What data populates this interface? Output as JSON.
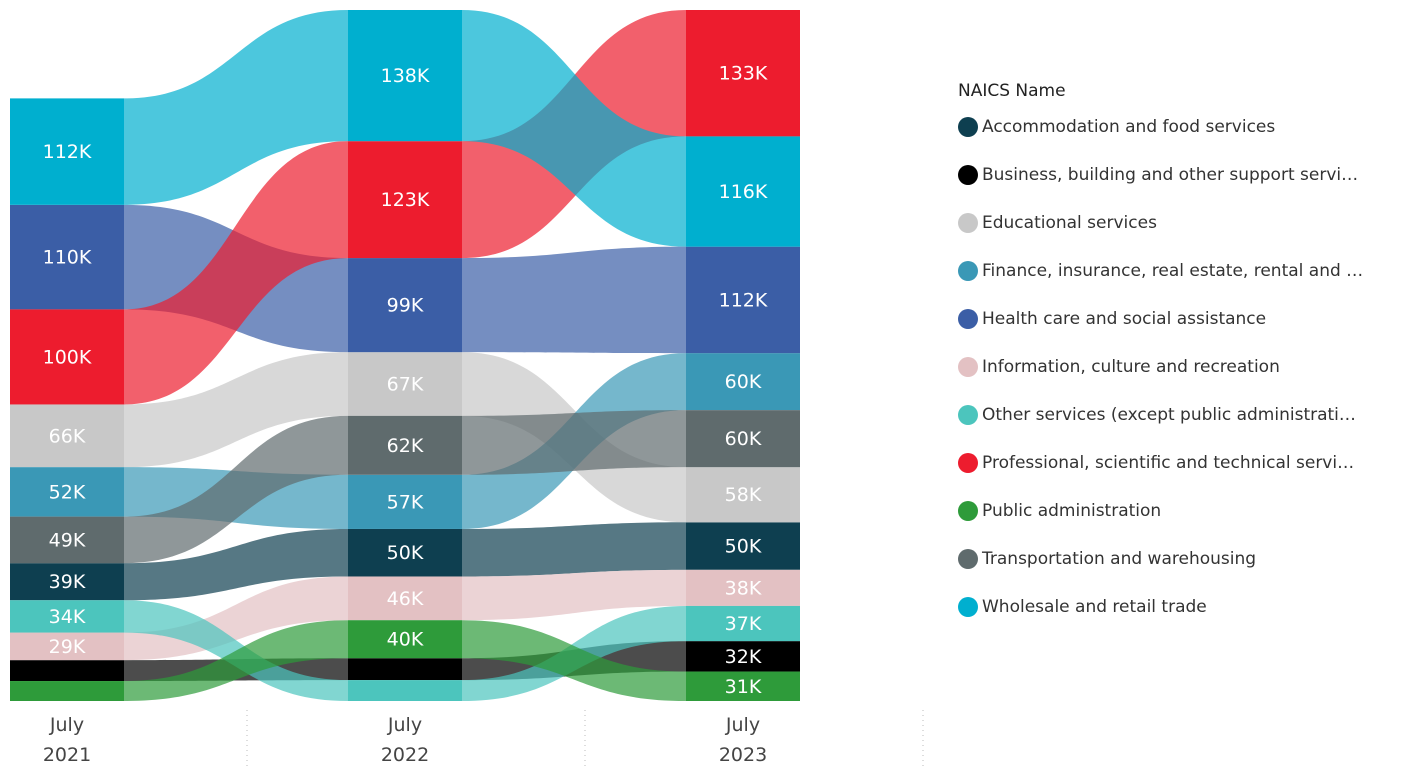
{
  "chart_data": {
    "type": "ribbon",
    "legend_title": "NAICS Name",
    "categories": [
      "July 2021",
      "July 2022",
      "July 2023"
    ],
    "series": [
      {
        "name": "Accommodation and food services",
        "color": "#0e3f50",
        "values": [
          39000,
          50000,
          50000
        ],
        "value_labels": [
          "39K",
          "50K",
          "50K"
        ]
      },
      {
        "name": "Business, building and other support servi…",
        "color": "#000000",
        "values": [
          22000,
          23000,
          32000
        ],
        "value_labels": [
          null,
          null,
          "32K"
        ]
      },
      {
        "name": "Educational services",
        "color": "#c8c8c8",
        "values": [
          66000,
          67000,
          58000
        ],
        "value_labels": [
          "66K",
          "67K",
          "58K"
        ]
      },
      {
        "name": "Finance, insurance, real estate, rental and …",
        "color": "#3a98b6",
        "values": [
          52000,
          57000,
          60000
        ],
        "value_labels": [
          "52K",
          "57K",
          "60K"
        ]
      },
      {
        "name": "Health care and social assistance",
        "color": "#3b5ea6",
        "values": [
          110000,
          99000,
          112000
        ],
        "value_labels": [
          "110K",
          "99K",
          "112K"
        ]
      },
      {
        "name": "Information, culture and recreation",
        "color": "#e3c1c3",
        "values": [
          29000,
          46000,
          38000
        ],
        "value_labels": [
          "29K",
          "46K",
          "38K"
        ]
      },
      {
        "name": "Other services (except public administrati…",
        "color": "#4cc5bd",
        "values": [
          34000,
          22000,
          37000
        ],
        "value_labels": [
          "34K",
          null,
          "37K"
        ]
      },
      {
        "name": "Professional, scientific and technical servi…",
        "color": "#ed1c2e",
        "values": [
          100000,
          123000,
          133000
        ],
        "value_labels": [
          "100K",
          "123K",
          "133K"
        ]
      },
      {
        "name": "Public administration",
        "color": "#2e9b3a",
        "values": [
          21000,
          40000,
          31000
        ],
        "value_labels": [
          null,
          "40K",
          "31K"
        ]
      },
      {
        "name": "Transportation and warehousing",
        "color": "#5f6b6d",
        "values": [
          49000,
          62000,
          60000
        ],
        "value_labels": [
          "49K",
          "62K",
          "60K"
        ]
      },
      {
        "name": "Wholesale and retail trade",
        "color": "#00afcf",
        "values": [
          112000,
          138000,
          116000
        ],
        "value_labels": [
          "112K",
          "138K",
          "116K"
        ]
      }
    ]
  }
}
